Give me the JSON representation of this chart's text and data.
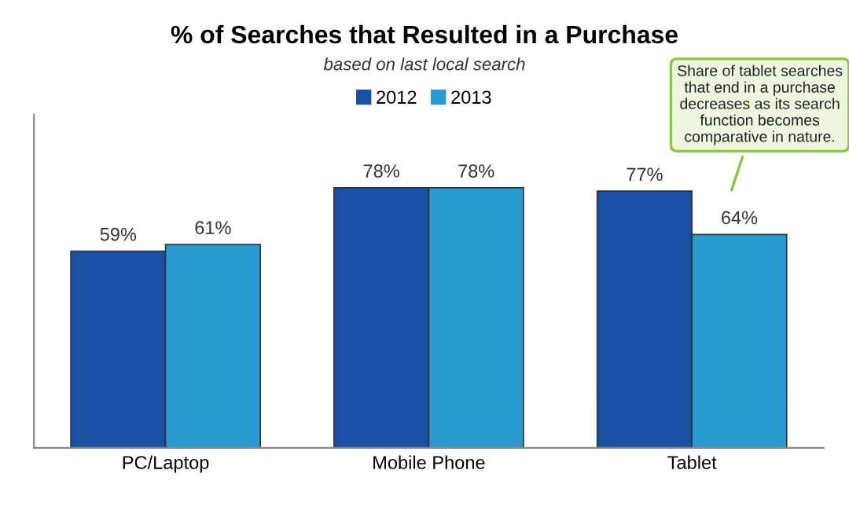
{
  "chart_data": {
    "type": "bar",
    "title": "% of Searches that Resulted in a Purchase",
    "subtitle": "based on last local search",
    "categories": [
      "PC/Laptop",
      "Mobile Phone",
      "Tablet"
    ],
    "series": [
      {
        "name": "2012",
        "color": "#1b4fa3",
        "values": [
          59,
          78,
          77
        ],
        "value_labels": [
          "59%",
          "78%",
          "77%"
        ]
      },
      {
        "name": "2013",
        "color": "#2a9bd0",
        "values": [
          61,
          78,
          64
        ],
        "value_labels": [
          "61%",
          "78%",
          "64%"
        ]
      }
    ],
    "ylim": [
      0,
      100
    ],
    "legend": "top",
    "grid": false,
    "tick_labels": "x",
    "annotations": [
      "Share of tablet searches that end in a purchase decreases as its search function becomes comparative in nature."
    ]
  }
}
